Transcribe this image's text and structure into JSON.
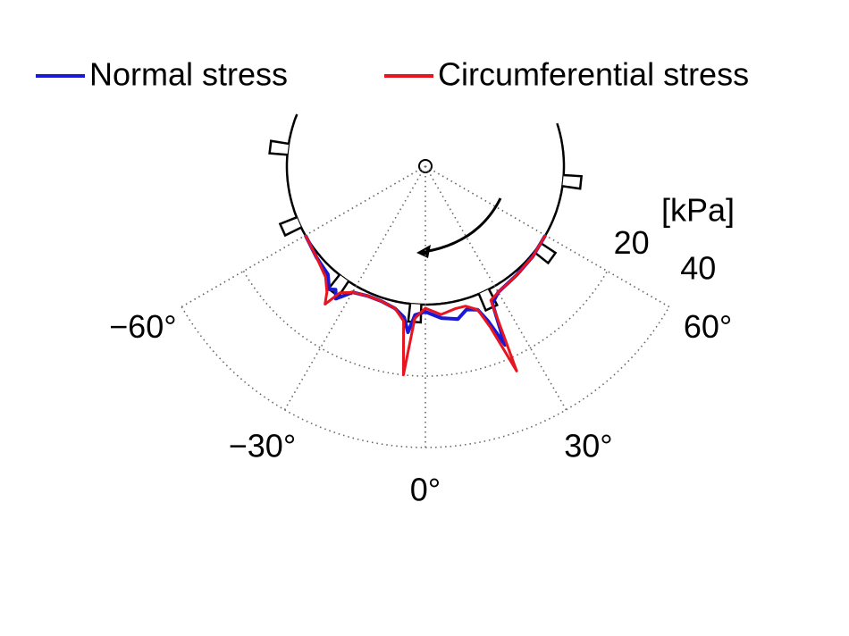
{
  "chart_data": {
    "type": "polar",
    "r_label": "[kPa]",
    "theta": [
      -60,
      -50,
      -42,
      -38,
      -36,
      -34,
      -30,
      -24,
      -18,
      -12,
      -8,
      -6,
      -4,
      0,
      6,
      12,
      16,
      20,
      22,
      24,
      26,
      30,
      40,
      50,
      60
    ],
    "series": [
      {
        "name": "Normal stress",
        "color": "#1a1ad6",
        "values": [
          0,
          1,
          2,
          5,
          4,
          6,
          2,
          1,
          1,
          2,
          4,
          8,
          3,
          2,
          4,
          5,
          3,
          4,
          8,
          16,
          4,
          2,
          1,
          0.5,
          0
        ]
      },
      {
        "name": "Circumferential stress",
        "color": "#e8141e",
        "values": [
          0,
          1,
          3,
          6,
          9,
          4,
          2,
          1,
          1,
          2,
          5,
          20,
          4,
          1,
          3,
          2,
          2,
          4,
          10,
          24,
          3,
          2,
          1,
          0.5,
          0
        ]
      }
    ],
    "rlim": [
      0,
      40
    ],
    "rticks": [
      20,
      40
    ],
    "thetalim": [
      -60,
      60
    ],
    "thetaticks": [
      {
        "value": -60,
        "label": "−60°"
      },
      {
        "value": -30,
        "label": "−30°"
      },
      {
        "value": 0,
        "label": "0°"
      },
      {
        "value": 30,
        "label": "30°"
      },
      {
        "value": 60,
        "label": "60°"
      }
    ],
    "grid": true
  }
}
